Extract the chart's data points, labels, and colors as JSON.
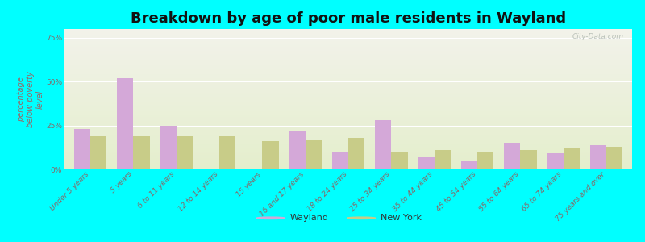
{
  "title": "Breakdown by age of poor male residents in Wayland",
  "categories": [
    "Under 5 years",
    "5 years",
    "6 to 11 years",
    "12 to 14 years",
    "15 years",
    "16 and 17 years",
    "18 to 24 years",
    "25 to 34 years",
    "35 to 44 years",
    "45 to 54 years",
    "55 to 64 years",
    "65 to 74 years",
    "75 years and over"
  ],
  "wayland_values": [
    23,
    52,
    25,
    0,
    0,
    22,
    10,
    28,
    7,
    5,
    15,
    9,
    14
  ],
  "newyork_values": [
    19,
    19,
    19,
    19,
    16,
    17,
    18,
    10,
    11,
    10,
    11,
    12,
    13
  ],
  "wayland_color": "#d4a8d8",
  "newyork_color": "#c8cc88",
  "ylabel": "percentage\nbelow poverty\nlevel",
  "yticks": [
    0,
    25,
    50,
    75
  ],
  "ytick_labels": [
    "0%",
    "25%",
    "50%",
    "75%"
  ],
  "ylim": [
    0,
    80
  ],
  "background_color": "#00ffff",
  "plot_bg_top": "#f2f2ea",
  "plot_bg_bottom": "#e4eecc",
  "watermark": "City-Data.com",
  "legend_wayland": "Wayland",
  "legend_newyork": "New York",
  "bar_width": 0.38,
  "title_fontsize": 13,
  "tick_fontsize": 6.5,
  "ylabel_fontsize": 7,
  "ylabel_color": "#996666",
  "tick_color": "#886666",
  "xtick_color": "#886666",
  "legend_fontsize": 8,
  "legend_marker_size": 80,
  "grid_color": "#ffffff",
  "grid_linewidth": 0.8
}
